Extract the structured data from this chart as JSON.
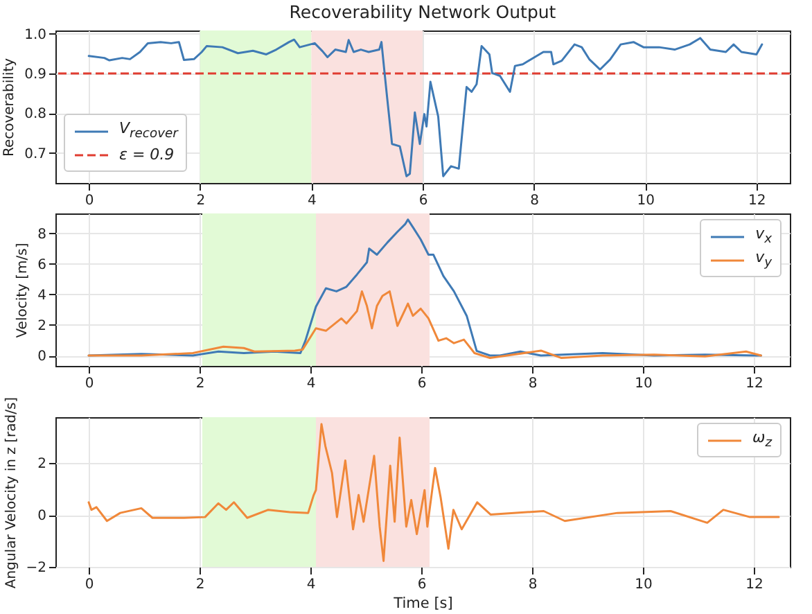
{
  "chart_data": [
    {
      "type": "line",
      "title": "Recoverability Network Output",
      "ylabel": "Recoverability",
      "xlim": [
        -0.6,
        12.6
      ],
      "xticks": [
        0,
        2,
        4,
        6,
        8,
        10,
        12
      ],
      "ylim": [
        0.625,
        1.008
      ],
      "yticks": [
        0.7,
        0.8,
        0.9,
        {
          "value": 1,
          "label": "1.0"
        }
      ],
      "grid": true,
      "legend": "bottom left",
      "line_style": "solid",
      "bands": [
        {
          "axis": "x",
          "from": 2,
          "to": 4,
          "color": "#e2fad6"
        },
        {
          "axis": "x",
          "from": 4,
          "to": 6,
          "color": "#fae1df"
        }
      ],
      "ref_lines": [
        {
          "axis": "y",
          "value": 0.9,
          "label": "ε = 0.9",
          "color": "#e03c31",
          "line_style": "dashed"
        }
      ],
      "series": [
        {
          "name": "V$_{recover}$",
          "color": "#3f7ab5",
          "x": [
            0,
            0.28,
            0.37,
            0.6,
            0.74,
            0.92,
            1.06,
            1.29,
            1.48,
            1.62,
            1.71,
            1.89,
            2.03,
            2.12,
            2.4,
            2.68,
            2.95,
            3.19,
            3.37,
            3.6,
            3.69,
            3.79,
            4.06,
            4.2,
            4.29,
            4.43,
            4.62,
            4.67,
            4.76,
            4.89,
            5.03,
            5.22,
            5.26,
            5.31,
            5.36,
            5.45,
            5.59,
            5.71,
            5.77,
            5.86,
            5.95,
            6.03,
            6.07,
            6.14,
            6.28,
            6.37,
            6.51,
            6.65,
            6.79,
            6.88,
            6.97,
            7.06,
            7.2,
            7.25,
            7.39,
            7.57,
            7.66,
            7.8,
            7.94,
            8.17,
            8.31,
            8.35,
            8.5,
            8.73,
            8.86,
            9.0,
            9.19,
            9.37,
            9.56,
            9.79,
            9.97,
            10.25,
            10.53,
            10.8,
            10.99,
            11.17,
            11.45,
            11.59,
            11.73,
            12.0,
            12.1
          ],
          "values": [
            0.944,
            0.939,
            0.933,
            0.939,
            0.936,
            0.954,
            0.976,
            0.979,
            0.976,
            0.979,
            0.934,
            0.936,
            0.954,
            0.969,
            0.966,
            0.951,
            0.957,
            0.948,
            0.96,
            0.979,
            0.985,
            0.966,
            0.976,
            0.956,
            0.941,
            0.96,
            0.954,
            0.984,
            0.954,
            0.96,
            0.954,
            0.96,
            0.979,
            0.91,
            0.842,
            0.723,
            0.717,
            0.642,
            0.648,
            0.802,
            0.723,
            0.798,
            0.767,
            0.879,
            0.792,
            0.642,
            0.667,
            0.661,
            0.866,
            0.854,
            0.873,
            0.969,
            0.948,
            0.901,
            0.894,
            0.854,
            0.919,
            0.923,
            0.935,
            0.954,
            0.954,
            0.923,
            0.932,
            0.973,
            0.966,
            0.935,
            0.91,
            0.935,
            0.973,
            0.979,
            0.966,
            0.966,
            0.96,
            0.973,
            0.989,
            0.96,
            0.954,
            0.973,
            0.954,
            0.948,
            0.973
          ]
        }
      ]
    },
    {
      "type": "line",
      "ylabel": "Velocity [m/s]",
      "xlim": [
        -0.6,
        12.65
      ],
      "xticks": [
        0,
        2,
        4,
        6,
        8,
        10,
        12
      ],
      "ylim": [
        -0.68,
        9.3
      ],
      "yticks": [
        0,
        2,
        4,
        6,
        8
      ],
      "grid": true,
      "legend": "top right",
      "line_style": "solid",
      "bands": [
        {
          "axis": "x",
          "from": 2.05,
          "to": 4.1,
          "color": "#e2fad6"
        },
        {
          "axis": "x",
          "from": 4.1,
          "to": 6.15,
          "color": "#fae1df"
        }
      ],
      "series": [
        {
          "name": "v$_{x}$",
          "color": "#3f7ab5",
          "x": [
            0,
            0.95,
            1.88,
            2.34,
            2.8,
            3.35,
            3.82,
            3.91,
            4.1,
            4.28,
            4.47,
            4.65,
            4.84,
            5.02,
            5.06,
            5.2,
            5.39,
            5.57,
            5.71,
            5.76,
            5.85,
            5.99,
            6.13,
            6.22,
            6.4,
            6.59,
            6.82,
            7.0,
            7.24,
            7.42,
            7.79,
            8.16,
            9.27,
            10.2,
            11.12,
            12.04,
            12.13
          ],
          "values": [
            0,
            0.1,
            0,
            0.26,
            0.16,
            0.26,
            0.16,
            0.97,
            3.2,
            4.4,
            4.2,
            4.5,
            5.3,
            6.1,
            7.0,
            6.6,
            7.4,
            8.1,
            8.6,
            8.9,
            8.4,
            7.6,
            6.6,
            6.6,
            5.2,
            4.2,
            2.6,
            0.3,
            0,
            0,
            0.26,
            0,
            0.16,
            0,
            0.06,
            0,
            0
          ]
        },
        {
          "name": "v$_{y}$",
          "color": "#f0883a",
          "x": [
            0,
            0.95,
            1.88,
            2.43,
            2.8,
            2.99,
            3.72,
            3.86,
            4.1,
            4.28,
            4.56,
            4.65,
            4.84,
            4.93,
            5.02,
            5.11,
            5.2,
            5.3,
            5.43,
            5.57,
            5.76,
            5.85,
            5.99,
            6.13,
            6.31,
            6.45,
            6.59,
            6.77,
            6.96,
            7.24,
            8.16,
            8.53,
            9.27,
            10.2,
            11.12,
            11.86,
            12.13
          ],
          "values": [
            0,
            0,
            0.16,
            0.58,
            0.49,
            0.26,
            0.32,
            0.39,
            1.78,
            1.62,
            2.43,
            2.1,
            2.9,
            4.2,
            3.24,
            1.78,
            3.24,
            3.9,
            4.2,
            1.94,
            3.4,
            2.6,
            3.07,
            2.43,
            0.97,
            1.13,
            0.81,
            1.04,
            0.16,
            -0.16,
            0.32,
            -0.16,
            0,
            0.06,
            -0.06,
            0.26,
            0
          ]
        }
      ]
    },
    {
      "type": "line",
      "xlabel": "Time [s]",
      "ylabel": "Angular Velocity in z [rad/s]",
      "xlim": [
        -0.6,
        12.65
      ],
      "xticks": [
        0,
        2,
        4,
        6,
        8,
        10,
        12
      ],
      "ylim": [
        -2,
        3.77
      ],
      "yticks": [
        -2,
        0,
        2
      ],
      "grid": true,
      "legend": "top right",
      "line_style": "solid",
      "bands": [
        {
          "axis": "x",
          "from": 2.05,
          "to": 4.1,
          "color": "#e2fad6"
        },
        {
          "axis": "x",
          "from": 4.1,
          "to": 6.15,
          "color": "#fae1df"
        }
      ],
      "series": [
        {
          "name": "ω$_{z}$",
          "color": "#f0883a",
          "x": [
            0,
            0.05,
            0.14,
            0.33,
            0.57,
            0.95,
            1.15,
            1.72,
            2.1,
            2.34,
            2.48,
            2.62,
            2.86,
            3.24,
            3.63,
            3.96,
            4.06,
            4.1,
            4.2,
            4.27,
            4.39,
            4.48,
            4.63,
            4.77,
            4.87,
            4.96,
            5.15,
            5.25,
            5.32,
            5.44,
            5.52,
            5.61,
            5.73,
            5.82,
            5.92,
            6.06,
            6.11,
            6.25,
            6.35,
            6.49,
            6.58,
            6.73,
            7.01,
            7.25,
            8.21,
            8.59,
            9.54,
            10.5,
            11.16,
            11.45,
            11.93,
            12.45
          ],
          "values": [
            0.49,
            0.2,
            0.3,
            -0.23,
            0.08,
            0.26,
            -0.11,
            -0.11,
            -0.08,
            0.45,
            0.2,
            0.49,
            -0.11,
            0.2,
            0.11,
            0.08,
            0.77,
            0.96,
            3.5,
            2.66,
            1.62,
            -0.08,
            2.1,
            -0.55,
            0.77,
            -0.26,
            2.28,
            -0.45,
            -1.77,
            1.9,
            -0.26,
            2.98,
            -0.45,
            0.58,
            -0.74,
            0.96,
            -0.45,
            1.81,
            0.68,
            -1.3,
            0.2,
            -0.55,
            0.49,
            0.02,
            0.15,
            -0.23,
            0.08,
            0.15,
            -0.3,
            0.2,
            -0.08,
            -0.08
          ]
        }
      ]
    }
  ]
}
